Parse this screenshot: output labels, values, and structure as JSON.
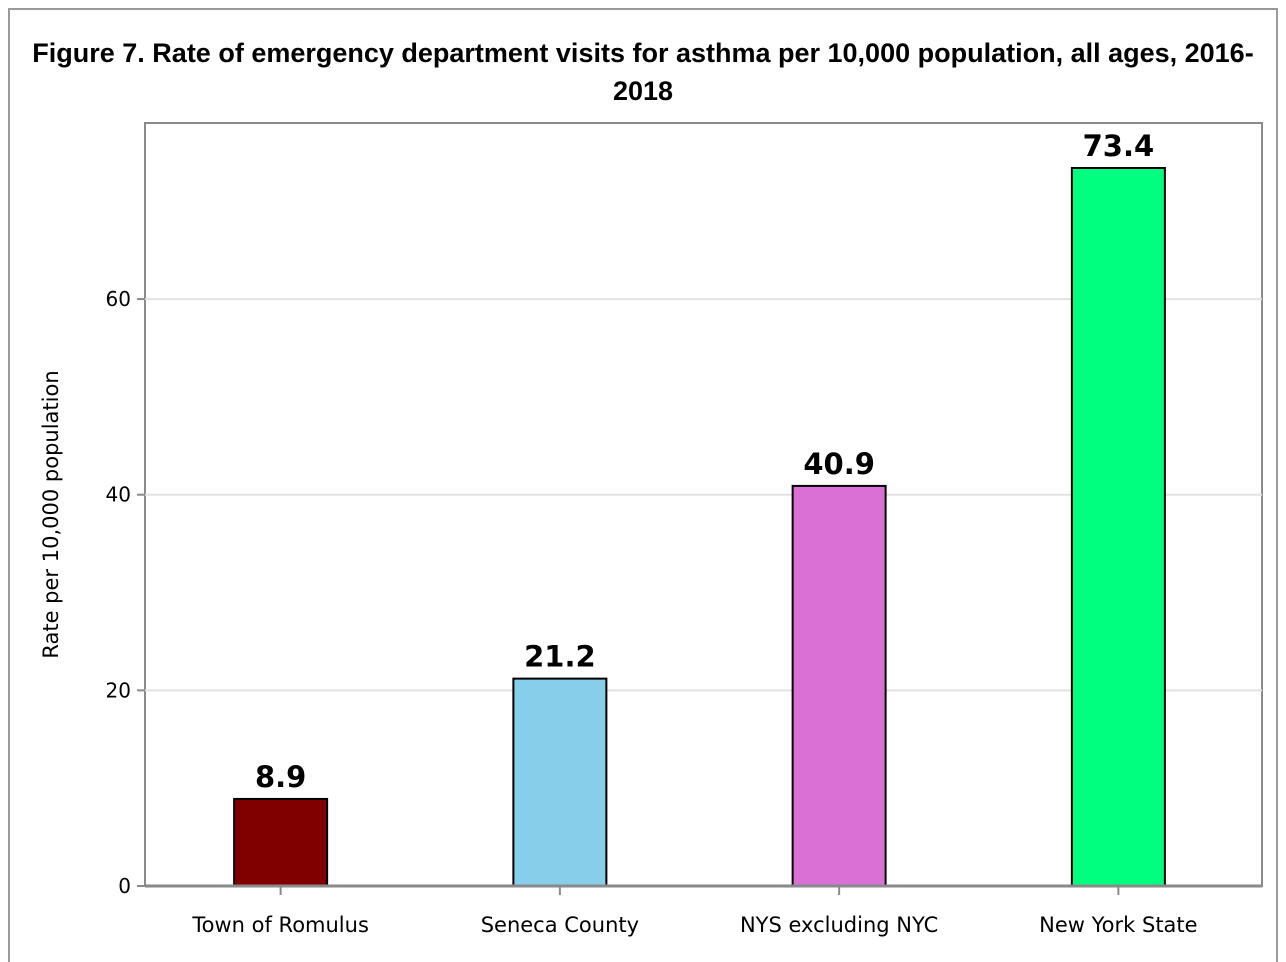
{
  "chart_data": {
    "type": "bar",
    "title": "Figure 7. Rate of emergency department visits for asthma per 10,000 population, all ages, 2016-2018",
    "xlabel": "",
    "ylabel": "Rate per 10,000 population",
    "categories": [
      "Town of Romulus",
      "Seneca County",
      "NYS excluding NYC",
      "New York State"
    ],
    "values": [
      8.9,
      21.2,
      40.9,
      73.4
    ],
    "data_labels": [
      "8.9",
      "21.2",
      "40.9",
      "73.4"
    ],
    "colors": [
      "#800000",
      "#87ceeb",
      "#da70d6",
      "#00ff7f"
    ],
    "ylim": [
      0,
      78
    ],
    "yticks": [
      0,
      20,
      40,
      60
    ],
    "ytick_labels": [
      "0",
      "20",
      "40",
      "60"
    ],
    "grid": true,
    "legend": "none"
  }
}
